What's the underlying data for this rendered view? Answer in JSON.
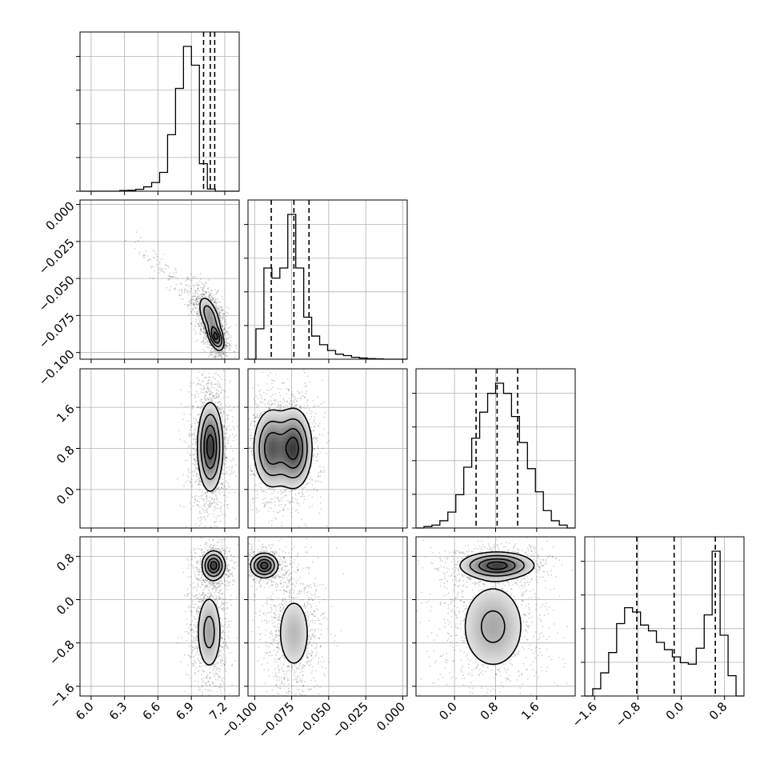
{
  "chart_data": {
    "type": "corner",
    "grid": true,
    "colors": {
      "line": "#000000",
      "grid": "#b0b0b0",
      "scatter": "#000000",
      "fill": "#808080"
    },
    "params": [
      {
        "range": [
          5.9,
          7.33
        ],
        "ticks": [
          6.0,
          6.3,
          6.6,
          6.9,
          7.2
        ],
        "tick_labels": [
          "6.0",
          "6.3",
          "6.6",
          "6.9",
          "7.2"
        ]
      },
      {
        "range": [
          -0.1045,
          0.003
        ],
        "ticks": [
          -0.1,
          -0.075,
          -0.05,
          -0.025,
          0.0
        ],
        "tick_labels": [
          "−0.100",
          "−0.075",
          "−0.050",
          "−0.025",
          "0.000"
        ]
      },
      {
        "range": [
          -0.75,
          2.35
        ],
        "ticks": [
          0.0,
          0.8,
          1.6
        ],
        "tick_labels": [
          "0.0",
          "0.8",
          "1.6"
        ]
      },
      {
        "range": [
          -1.78,
          1.16
        ],
        "ticks": [
          -1.6,
          -0.8,
          0.0,
          0.8
        ],
        "tick_labels": [
          "−1.6",
          "−0.8",
          "0.0",
          "0.8"
        ]
      }
    ],
    "histograms": [
      {
        "param": 0,
        "bins": 20,
        "heights": [
          0,
          0,
          0,
          0,
          0,
          0.005,
          0.006,
          0.013,
          0.03,
          0.06,
          0.13,
          0.39,
          0.71,
          1.0,
          0.87,
          0.19,
          0.015,
          0,
          0,
          0
        ],
        "quantiles": [
          7.01,
          7.07,
          7.11
        ]
      },
      {
        "param": 1,
        "bins": 20,
        "heights": [
          0,
          0.21,
          0.63,
          0.56,
          0.63,
          1.0,
          0.63,
          0.29,
          0.16,
          0.1,
          0.06,
          0.035,
          0.025,
          0.013,
          0.008,
          0.004,
          0.002,
          0,
          0,
          0
        ],
        "quantiles": [
          -0.0888,
          -0.0735,
          -0.0633
        ]
      },
      {
        "param": 2,
        "bins": 20,
        "heights": [
          0,
          0.01,
          0.02,
          0.05,
          0.11,
          0.23,
          0.42,
          0.62,
          0.8,
          0.93,
          1.0,
          0.93,
          0.77,
          0.59,
          0.41,
          0.25,
          0.12,
          0.05,
          0.02,
          0
        ],
        "quantiles": [
          0.42,
          0.83,
          1.23
        ]
      },
      {
        "param": 3,
        "bins": 20,
        "heights": [
          0,
          0.05,
          0.16,
          0.3,
          0.5,
          0.61,
          0.58,
          0.49,
          0.45,
          0.37,
          0.32,
          0.27,
          0.23,
          0.22,
          0.33,
          0.56,
          1.0,
          0.42,
          0.14,
          0
        ],
        "quantiles": [
          -0.82,
          -0.13,
          0.63
        ]
      }
    ],
    "pairs": [
      {
        "x": 0,
        "y": 1,
        "blobs": [
          {
            "cx": 7.065,
            "cy": -0.0755,
            "sx": 0.05,
            "sy": 0.007,
            "rho": -0.55,
            "w": 0.55
          },
          {
            "cx": 7.12,
            "cy": -0.0895,
            "sx": 0.035,
            "sy": 0.0045,
            "rho": -0.45,
            "w": 0.45
          }
        ],
        "tail": {
          "from": [
            6.3,
            -0.02
          ],
          "to": [
            7.0,
            -0.07
          ],
          "w": 0.08
        }
      },
      {
        "x": 0,
        "y": 2,
        "blobs": [
          {
            "cx": 7.07,
            "cy": 0.83,
            "sx": 0.055,
            "sy": 0.42,
            "rho": 0.0,
            "w": 1.0
          }
        ]
      },
      {
        "x": 1,
        "y": 2,
        "blobs": [
          {
            "cx": -0.0888,
            "cy": 0.8,
            "sx": 0.006,
            "sy": 0.38,
            "rho": 0.0,
            "w": 0.45
          },
          {
            "cx": -0.0735,
            "cy": 0.8,
            "sx": 0.006,
            "sy": 0.38,
            "rho": 0.0,
            "w": 0.55
          }
        ]
      },
      {
        "x": 0,
        "y": 3,
        "blobs": [
          {
            "cx": 7.1,
            "cy": 0.63,
            "sx": 0.05,
            "sy": 0.13,
            "rho": 0.0,
            "w": 0.4
          },
          {
            "cx": 7.06,
            "cy": -0.6,
            "sx": 0.06,
            "sy": 0.38,
            "rho": 0.0,
            "w": 0.6
          }
        ]
      },
      {
        "x": 1,
        "y": 3,
        "blobs": [
          {
            "cx": -0.0935,
            "cy": 0.63,
            "sx": 0.0045,
            "sy": 0.11,
            "rho": 0.0,
            "w": 0.38
          },
          {
            "cx": -0.0735,
            "cy": -0.62,
            "sx": 0.0065,
            "sy": 0.4,
            "rho": 0.0,
            "w": 0.62
          }
        ]
      },
      {
        "x": 2,
        "y": 3,
        "blobs": [
          {
            "cx": 0.83,
            "cy": 0.63,
            "sx": 0.35,
            "sy": 0.12,
            "rho": 0.0,
            "w": 0.4
          },
          {
            "cx": 0.75,
            "cy": -0.5,
            "sx": 0.35,
            "sy": 0.45,
            "rho": 0.0,
            "w": 0.6
          }
        ]
      }
    ]
  }
}
